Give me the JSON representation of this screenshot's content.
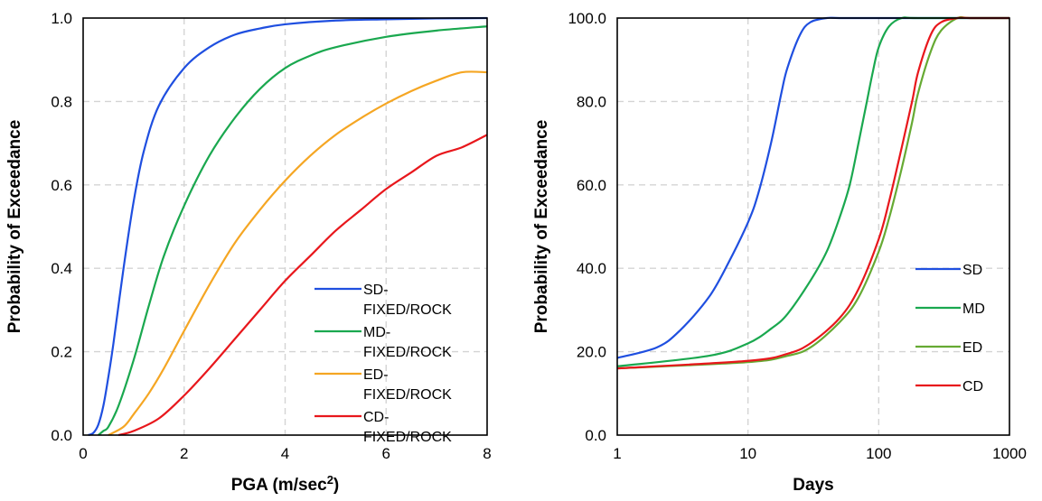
{
  "chart_data": [
    {
      "type": "line",
      "xlabel": "PGA (m/sec",
      "xlabel_sup": "2",
      "xlabel_suffix": ")",
      "ylabel": "Probability of Exceedance",
      "xlim": [
        0,
        8
      ],
      "ylim": [
        0,
        1
      ],
      "xticks": [
        0,
        2,
        4,
        6,
        8
      ],
      "yticks": [
        0,
        0.2,
        0.4,
        0.6,
        0.8,
        1.0
      ],
      "xtick_labels": [
        "0",
        "2",
        "4",
        "6",
        "8"
      ],
      "ytick_labels": [
        "0.0",
        "0.2",
        "0.4",
        "0.6",
        "0.8",
        "1.0"
      ],
      "grid": true,
      "legend_position": "bottom-right",
      "series": [
        {
          "name": "SD-\nFIXED/ROCK",
          "color": "#1f4fe0",
          "x": [
            0.1,
            0.2,
            0.3,
            0.4,
            0.5,
            0.6,
            0.8,
            1.0,
            1.2,
            1.5,
            2.0,
            2.5,
            3.0,
            3.5,
            4.0,
            5.0,
            6.0,
            7.0,
            8.0
          ],
          "y": [
            0.0,
            0.005,
            0.025,
            0.07,
            0.14,
            0.22,
            0.4,
            0.56,
            0.68,
            0.79,
            0.88,
            0.93,
            0.96,
            0.975,
            0.985,
            0.994,
            0.997,
            0.999,
            1.0
          ]
        },
        {
          "name": "MD-\nFIXED/ROCK",
          "color": "#1aa84f",
          "x": [
            0.3,
            0.4,
            0.5,
            0.7,
            1.0,
            1.3,
            1.6,
            2.0,
            2.5,
            3.0,
            3.5,
            4.0,
            4.5,
            5.0,
            6.0,
            7.0,
            8.0
          ],
          "y": [
            0.0,
            0.01,
            0.02,
            0.07,
            0.18,
            0.31,
            0.43,
            0.55,
            0.67,
            0.76,
            0.83,
            0.88,
            0.91,
            0.93,
            0.955,
            0.97,
            0.98
          ]
        },
        {
          "name": "ED-\nFIXED/ROCK",
          "color": "#f5a623",
          "x": [
            0.5,
            0.8,
            1.0,
            1.3,
            1.6,
            2.0,
            2.5,
            3.0,
            3.5,
            4.0,
            4.5,
            5.0,
            5.5,
            6.0,
            6.5,
            7.0,
            7.5,
            8.0
          ],
          "y": [
            0.0,
            0.02,
            0.05,
            0.1,
            0.16,
            0.25,
            0.36,
            0.46,
            0.54,
            0.61,
            0.67,
            0.72,
            0.76,
            0.795,
            0.825,
            0.85,
            0.87,
            0.87
          ]
        },
        {
          "name": "CD-\nFIXED/ROCK",
          "color": "#e8171c",
          "x": [
            0.7,
            1.0,
            1.5,
            2.0,
            2.5,
            3.0,
            3.5,
            4.0,
            4.5,
            5.0,
            5.5,
            6.0,
            6.5,
            7.0,
            7.5,
            8.0
          ],
          "y": [
            0.0,
            0.01,
            0.04,
            0.095,
            0.16,
            0.23,
            0.3,
            0.37,
            0.43,
            0.49,
            0.54,
            0.59,
            0.63,
            0.67,
            0.69,
            0.72
          ]
        }
      ]
    },
    {
      "type": "line",
      "xlabel": "Days",
      "ylabel": "Probability of Exceedance",
      "xscale": "log",
      "xlim": [
        1,
        1000
      ],
      "ylim": [
        0,
        100
      ],
      "xticks": [
        1,
        10,
        100,
        1000
      ],
      "yticks": [
        0,
        20,
        40,
        60,
        80,
        100
      ],
      "xtick_labels": [
        "1",
        "10",
        "100",
        "1000"
      ],
      "ytick_labels": [
        "0.0",
        "20.0",
        "40.0",
        "60.0",
        "80.0",
        "100.0"
      ],
      "grid": true,
      "legend_position": "center-right",
      "series": [
        {
          "name": "SD",
          "color": "#1f4fe0",
          "x": [
            1,
            2,
            3,
            5,
            7,
            10,
            12,
            15,
            18,
            20,
            25,
            30,
            40,
            50,
            100,
            1000
          ],
          "y": [
            18.5,
            21,
            25,
            33,
            41,
            51,
            58,
            70,
            82,
            88,
            96,
            99,
            100,
            100,
            100,
            100
          ]
        },
        {
          "name": "MD",
          "color": "#1aa84f",
          "x": [
            1,
            5,
            10,
            15,
            20,
            30,
            40,
            50,
            60,
            70,
            80,
            90,
            100,
            120,
            150,
            200,
            1000
          ],
          "y": [
            16.5,
            19,
            22,
            25.5,
            29,
            37,
            44,
            52,
            60,
            70,
            79,
            87,
            93,
            98,
            100,
            100,
            100
          ]
        },
        {
          "name": "ED",
          "color": "#66aa33",
          "x": [
            1,
            10,
            20,
            30,
            50,
            70,
            100,
            120,
            150,
            180,
            200,
            250,
            300,
            400,
            500,
            1000
          ],
          "y": [
            16,
            17.5,
            19,
            21,
            27,
            33,
            44,
            52,
            64,
            75,
            82,
            92,
            97,
            100,
            100,
            100
          ]
        },
        {
          "name": "CD",
          "color": "#e8171c",
          "x": [
            1,
            10,
            20,
            30,
            50,
            70,
            100,
            120,
            150,
            180,
            200,
            250,
            300,
            400,
            500,
            1000
          ],
          "y": [
            16,
            17.8,
            19.5,
            22,
            28,
            35,
            47,
            56,
            69,
            80,
            87,
            96,
            99,
            100,
            100,
            100
          ]
        }
      ]
    }
  ]
}
